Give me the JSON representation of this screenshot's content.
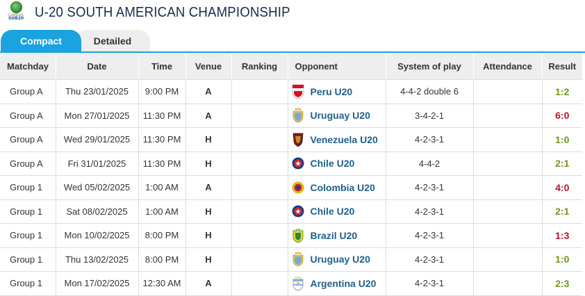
{
  "header": {
    "title": "U-20 SOUTH AMERICAN CHAMPIONSHIP",
    "logo_text_small": "CONMEBOL",
    "logo_text": "SUB20"
  },
  "tabs": [
    {
      "label": "Compact"
    },
    {
      "label": "Detailed"
    }
  ],
  "columns": [
    "Matchday",
    "Date",
    "Time",
    "Venue",
    "Ranking",
    "Opponent",
    "System of play",
    "Attendance",
    "Result"
  ],
  "colors": {
    "accent": "#1aa3df",
    "win": "#6d9a1a",
    "loss": "#b0152c",
    "link": "#1f5f8b"
  },
  "rows": [
    {
      "matchday": "Group A",
      "date": "Thu 23/01/2025",
      "time": "9:00 PM",
      "venue": "A",
      "ranking": "",
      "opponent": "Peru U20",
      "crest": "peru-crest-icon",
      "system": "4-4-2 double 6",
      "attendance": "",
      "result": "1:2",
      "outcome": "win"
    },
    {
      "matchday": "Group A",
      "date": "Mon 27/01/2025",
      "time": "11:30 PM",
      "venue": "A",
      "ranking": "",
      "opponent": "Uruguay U20",
      "crest": "uruguay-crest-icon",
      "system": "3-4-2-1",
      "attendance": "",
      "result": "6:0",
      "outcome": "loss"
    },
    {
      "matchday": "Group A",
      "date": "Wed 29/01/2025",
      "time": "11:30 PM",
      "venue": "H",
      "ranking": "",
      "opponent": "Venezuela U20",
      "crest": "venezuela-crest-icon",
      "system": "4-2-3-1",
      "attendance": "",
      "result": "1:0",
      "outcome": "win"
    },
    {
      "matchday": "Group A",
      "date": "Fri 31/01/2025",
      "time": "11:30 PM",
      "venue": "H",
      "ranking": "",
      "opponent": "Chile U20",
      "crest": "chile-crest-icon",
      "system": "4-4-2",
      "attendance": "",
      "result": "2:1",
      "outcome": "win"
    },
    {
      "matchday": "Group 1",
      "date": "Wed 05/02/2025",
      "time": "1:00 AM",
      "venue": "A",
      "ranking": "",
      "opponent": "Colombia U20",
      "crest": "colombia-crest-icon",
      "system": "4-2-3-1",
      "attendance": "",
      "result": "4:0",
      "outcome": "loss"
    },
    {
      "matchday": "Group 1",
      "date": "Sat 08/02/2025",
      "time": "1:00 AM",
      "venue": "H",
      "ranking": "",
      "opponent": "Chile U20",
      "crest": "chile-crest-icon",
      "system": "4-2-3-1",
      "attendance": "",
      "result": "2:1",
      "outcome": "win"
    },
    {
      "matchday": "Group 1",
      "date": "Mon 10/02/2025",
      "time": "8:00 PM",
      "venue": "H",
      "ranking": "",
      "opponent": "Brazil U20",
      "crest": "brazil-crest-icon",
      "system": "4-2-3-1",
      "attendance": "",
      "result": "1:3",
      "outcome": "loss"
    },
    {
      "matchday": "Group 1",
      "date": "Thu 13/02/2025",
      "time": "8:00 PM",
      "venue": "H",
      "ranking": "",
      "opponent": "Uruguay U20",
      "crest": "uruguay-crest-icon",
      "system": "4-2-3-1",
      "attendance": "",
      "result": "1:0",
      "outcome": "win"
    },
    {
      "matchday": "Group 1",
      "date": "Mon 17/02/2025",
      "time": "12:30 AM",
      "venue": "A",
      "ranking": "",
      "opponent": "Argentina U20",
      "crest": "argentina-crest-icon",
      "system": "4-2-3-1",
      "attendance": "",
      "result": "2:3",
      "outcome": "win"
    }
  ]
}
